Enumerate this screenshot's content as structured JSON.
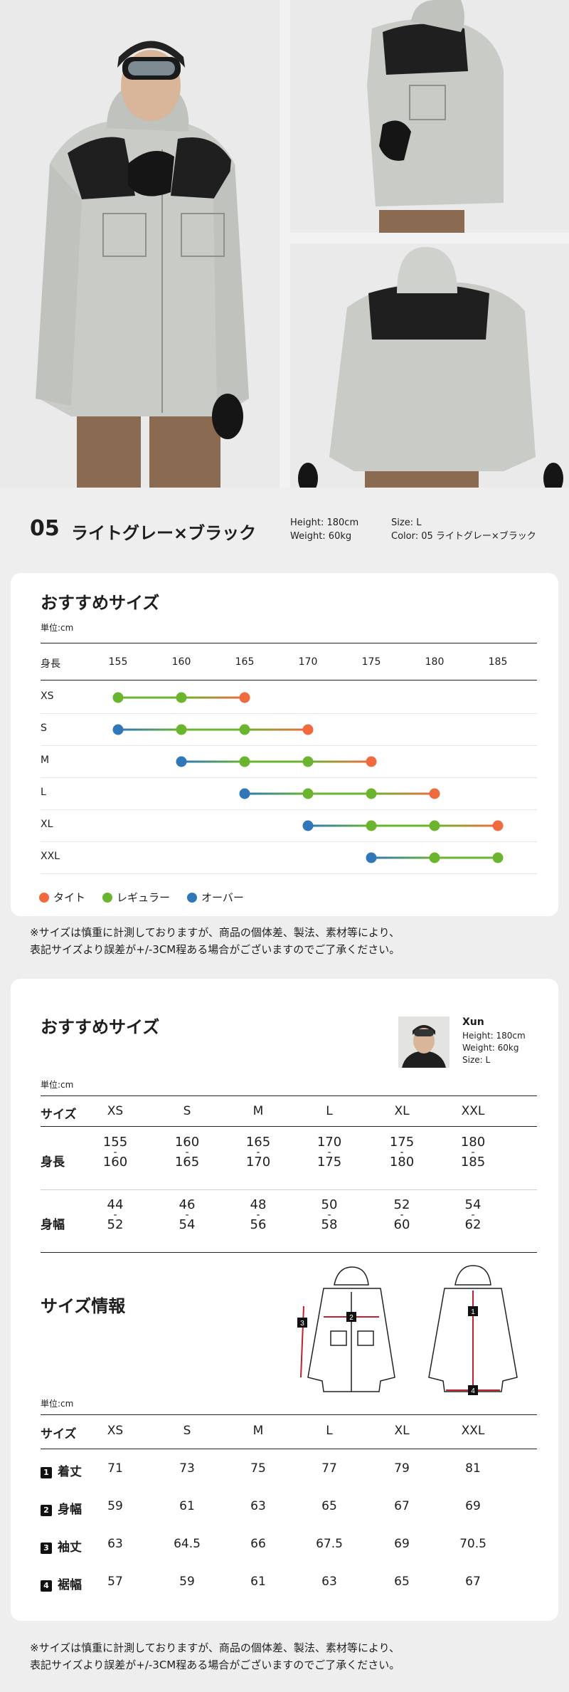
{
  "color_header": {
    "number": "05",
    "name": "ライトグレー×ブラック",
    "height": "Height: 180cm",
    "weight": "Weight: 60kg",
    "size": "Size: L",
    "color": "Color: 05 ライトグレー×ブラック"
  },
  "recommend_chart": {
    "title": "おすすめサイズ",
    "unit": "単位:cm",
    "height_label": "身長",
    "legend": [
      {
        "label": "タイト",
        "color": "#ef6a3e"
      },
      {
        "label": "レギュラー",
        "color": "#6ab42e"
      },
      {
        "label": "オーバー",
        "color": "#2f77b9"
      }
    ]
  },
  "chart_data": {
    "type": "scatter",
    "title": "おすすめサイズ",
    "xlabel": "身長",
    "x_ticks": [
      155,
      160,
      165,
      170,
      175,
      180,
      185
    ],
    "xlim": [
      155,
      185
    ],
    "categories": [
      "XS",
      "S",
      "M",
      "L",
      "XL",
      "XXL"
    ],
    "series": [
      {
        "name": "XS",
        "points": [
          {
            "x": 155,
            "fit": "regular"
          },
          {
            "x": 160,
            "fit": "regular"
          },
          {
            "x": 165,
            "fit": "tight"
          }
        ]
      },
      {
        "name": "S",
        "points": [
          {
            "x": 155,
            "fit": "over"
          },
          {
            "x": 160,
            "fit": "regular"
          },
          {
            "x": 165,
            "fit": "regular"
          },
          {
            "x": 170,
            "fit": "tight"
          }
        ]
      },
      {
        "name": "M",
        "points": [
          {
            "x": 160,
            "fit": "over"
          },
          {
            "x": 165,
            "fit": "regular"
          },
          {
            "x": 170,
            "fit": "regular"
          },
          {
            "x": 175,
            "fit": "tight"
          }
        ]
      },
      {
        "name": "L",
        "points": [
          {
            "x": 165,
            "fit": "over"
          },
          {
            "x": 170,
            "fit": "regular"
          },
          {
            "x": 175,
            "fit": "regular"
          },
          {
            "x": 180,
            "fit": "tight"
          }
        ]
      },
      {
        "name": "XL",
        "points": [
          {
            "x": 170,
            "fit": "over"
          },
          {
            "x": 175,
            "fit": "regular"
          },
          {
            "x": 180,
            "fit": "regular"
          },
          {
            "x": 185,
            "fit": "tight"
          }
        ]
      },
      {
        "name": "XXL",
        "points": [
          {
            "x": 175,
            "fit": "over"
          },
          {
            "x": 180,
            "fit": "regular"
          },
          {
            "x": 185,
            "fit": "regular"
          }
        ]
      }
    ],
    "fit_colors": {
      "tight": "#ef6a3e",
      "regular": "#6ab42e",
      "over": "#2f77b9"
    }
  },
  "note": {
    "line1": "※サイズは慎重に計測しておりますが、商品の個体差、製法、素材等により、",
    "line2": "表記サイズより誤差が+/-3CM程ある場合がございますのでご了承ください。"
  },
  "size_table": {
    "title": "おすすめサイズ",
    "unit": "単位:cm",
    "model": {
      "name": "Xun",
      "height": "Height: 180cm",
      "weight": "Weight: 60kg",
      "size": "Size: L"
    },
    "header_label": "サイズ",
    "sizes": [
      "XS",
      "S",
      "M",
      "L",
      "XL",
      "XXL"
    ],
    "rows": [
      {
        "label": "身長",
        "values": [
          [
            "155",
            "160"
          ],
          [
            "160",
            "165"
          ],
          [
            "165",
            "170"
          ],
          [
            "170",
            "175"
          ],
          [
            "175",
            "180"
          ],
          [
            "180",
            "185"
          ]
        ]
      },
      {
        "label": "身幅",
        "values": [
          [
            "44",
            "52"
          ],
          [
            "46",
            "54"
          ],
          [
            "48",
            "56"
          ],
          [
            "50",
            "58"
          ],
          [
            "52",
            "60"
          ],
          [
            "54",
            "62"
          ]
        ]
      }
    ],
    "dash": "-"
  },
  "size_info": {
    "title": "サイズ情報",
    "unit": "単位:cm",
    "header_label": "サイズ",
    "sizes": [
      "XS",
      "S",
      "M",
      "L",
      "XL",
      "XXL"
    ],
    "rows": [
      {
        "num": "1",
        "label": "着丈",
        "values": [
          "71",
          "73",
          "75",
          "77",
          "79",
          "81"
        ]
      },
      {
        "num": "2",
        "label": "身幅",
        "values": [
          "59",
          "61",
          "63",
          "65",
          "67",
          "69"
        ]
      },
      {
        "num": "3",
        "label": "袖丈",
        "values": [
          "63",
          "64.5",
          "66",
          "67.5",
          "69",
          "70.5"
        ]
      },
      {
        "num": "4",
        "label": "裾幅",
        "values": [
          "57",
          "59",
          "61",
          "63",
          "65",
          "67"
        ]
      }
    ],
    "diagram_labels": [
      "1",
      "2",
      "3",
      "4"
    ]
  }
}
